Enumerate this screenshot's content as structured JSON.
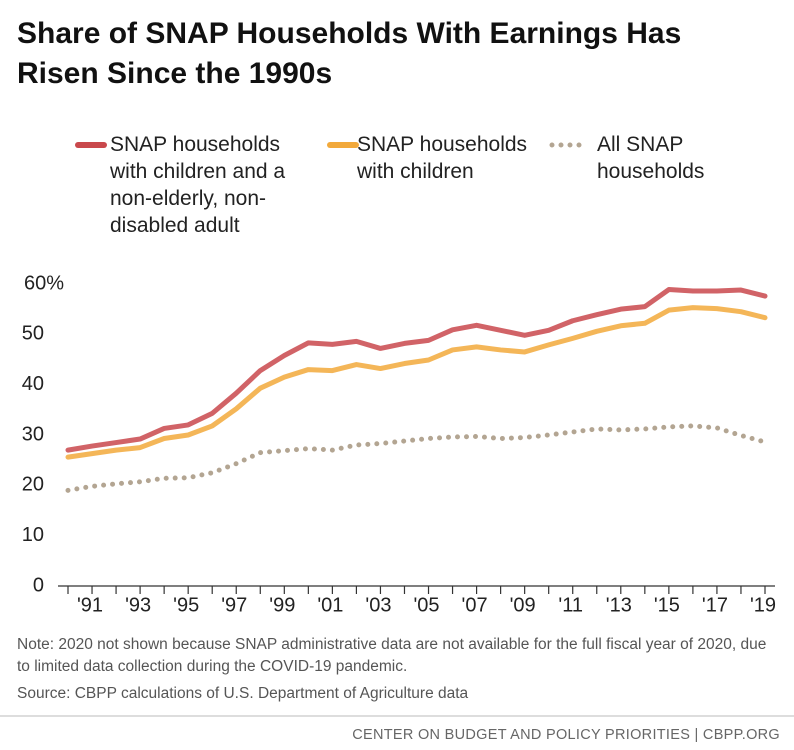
{
  "chart_data": {
    "type": "line",
    "title": "Share of SNAP Households With Earnings Has Risen Since the 1990s",
    "categories": [
      null,
      "'91",
      null,
      "'93",
      null,
      "'95",
      null,
      "'97",
      null,
      "'99",
      null,
      "'01",
      null,
      "'03",
      null,
      "'05",
      null,
      "'07",
      null,
      "'09",
      null,
      "'11",
      null,
      "'13",
      null,
      "'15",
      null,
      "'17",
      null,
      "'19"
    ],
    "series": [
      {
        "name": "SNAP households with children and a non-elderly, non-disabled adult",
        "color": "#c9484c",
        "style": "solid",
        "values": [
          27,
          27.8,
          28.5,
          29.2,
          31.3,
          32,
          34.3,
          38.3,
          42.8,
          45.8,
          48.3,
          48,
          48.6,
          47.2,
          48.2,
          48.8,
          50.9,
          51.8,
          50.8,
          49.8,
          50.8,
          52.7,
          53.9,
          55,
          55.5,
          58.9,
          58.6,
          58.6,
          58.8,
          57.6
        ]
      },
      {
        "name": "SNAP households with children",
        "color": "#f2a93b",
        "style": "solid",
        "values": [
          25.6,
          26.3,
          27,
          27.5,
          29.3,
          30,
          31.8,
          35.2,
          39.3,
          41.5,
          43,
          42.8,
          44,
          43.2,
          44.2,
          44.9,
          46.9,
          47.5,
          46.9,
          46.5,
          47.9,
          49.2,
          50.6,
          51.7,
          52.2,
          54.8,
          55.3,
          55.1,
          54.5,
          53.3
        ]
      },
      {
        "name": "All SNAP households",
        "color": "#b3a592",
        "style": "dotted",
        "values": [
          19,
          19.8,
          20.3,
          20.7,
          21.4,
          21.5,
          22.5,
          24.3,
          26.5,
          26.9,
          27.3,
          27,
          28,
          28.3,
          28.8,
          29.3,
          29.6,
          29.7,
          29.3,
          29.5,
          30,
          30.6,
          31.2,
          31,
          31.2,
          31.6,
          31.8,
          31.4,
          29.9,
          28.6
        ]
      }
    ],
    "ylim": [
      0,
      60
    ],
    "yticks": [
      0,
      10,
      20,
      30,
      40,
      50,
      {
        "value": 60,
        "label": "60%"
      }
    ],
    "note": "Note: 2020 not shown because SNAP administrative data are not available for the full fiscal year of 2020, due to limited data collection during the COVID-19 pandemic.",
    "source": "Source: CBPP calculations of U.S. Department of Agriculture data",
    "footer": "CENTER ON BUDGET AND POLICY PRIORITIES | CBPP.ORG"
  }
}
